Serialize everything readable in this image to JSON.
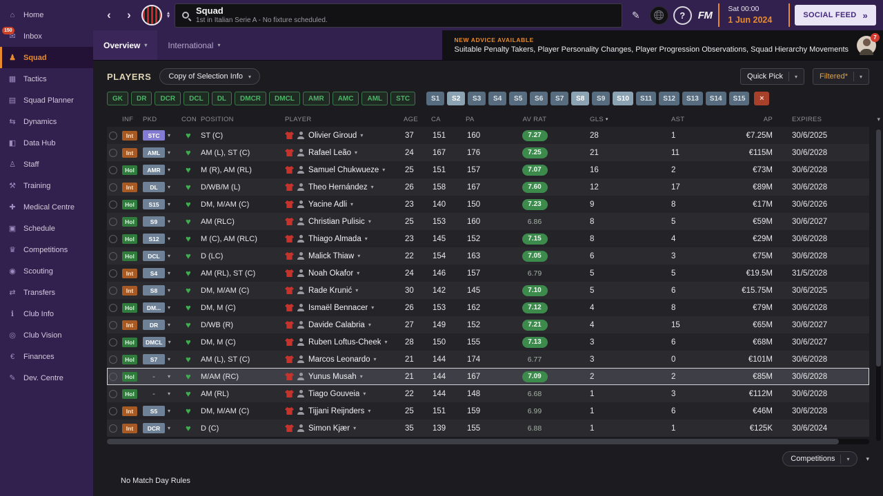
{
  "icons": {
    "chevron_down": "▾",
    "chevron_up": "▴",
    "sort_desc": "▾",
    "double_arrow": "»",
    "back": "‹",
    "forward": "›",
    "pencil": "✎",
    "help": "?",
    "heart": "♥",
    "clear": "×",
    "sidebar": {
      "home": "⌂",
      "inbox": "✉",
      "squad": "♟",
      "tactics": "▦",
      "squad_planner": "▤",
      "dynamics": "⇆",
      "data_hub": "◧",
      "staff": "♙",
      "training": "⚒",
      "medical": "✚",
      "schedule": "▣",
      "competitions": "♛",
      "scouting": "◉",
      "transfers": "⇄",
      "club_info": "ℹ",
      "club_vision": "◎",
      "finances": "€",
      "dev_centre": "✎"
    }
  },
  "topbar": {
    "title": "Squad",
    "subtitle": "1st in Italian Serie A - No fixture scheduled.",
    "date_time": "Sat 00:00",
    "date": "1 Jun 2024",
    "fm_label": "FM",
    "social_feed_label": "SOCIAL FEED"
  },
  "tab_bar": {
    "tabs": [
      {
        "label": "Overview",
        "active": true
      },
      {
        "label": "International",
        "active": false
      }
    ],
    "advice_title": "NEW ADVICE AVAILABLE",
    "advice_text": "Suitable Penalty Takers, Player Personality Changes, Player Progression Observations, Squad Hierarchy Movements",
    "advice_badge": "7"
  },
  "sidebar": {
    "items": [
      {
        "label": "Home",
        "icon": "home"
      },
      {
        "label": "Inbox",
        "icon": "inbox",
        "badge": "150"
      },
      {
        "label": "Squad",
        "icon": "squad",
        "active": true
      },
      {
        "label": "Tactics",
        "icon": "tactics"
      },
      {
        "label": "Squad Planner",
        "icon": "squad_planner"
      },
      {
        "label": "Dynamics",
        "icon": "dynamics"
      },
      {
        "label": "Data Hub",
        "icon": "data_hub"
      },
      {
        "label": "Staff",
        "icon": "staff"
      },
      {
        "label": "Training",
        "icon": "training"
      },
      {
        "label": "Medical Centre",
        "icon": "medical"
      },
      {
        "label": "Schedule",
        "icon": "schedule"
      },
      {
        "label": "Competitions",
        "icon": "competitions"
      },
      {
        "label": "Scouting",
        "icon": "scouting"
      },
      {
        "label": "Transfers",
        "icon": "transfers"
      },
      {
        "label": "Club Info",
        "icon": "club_info"
      },
      {
        "label": "Club Vision",
        "icon": "club_vision"
      },
      {
        "label": "Finances",
        "icon": "finances"
      },
      {
        "label": "Dev. Centre",
        "icon": "dev_centre"
      }
    ]
  },
  "players_panel": {
    "title": "PLAYERS",
    "selection_dropdown": "Copy of Selection Info",
    "quick_pick_label": "Quick Pick",
    "filtered_label": "Filtered*"
  },
  "position_filters": [
    "GK",
    "DR",
    "DCR",
    "DCL",
    "DL",
    "DMCR",
    "DMCL",
    "AMR",
    "AMC",
    "AML",
    "STC"
  ],
  "sub_filters": [
    {
      "label": "S1",
      "state": "normal"
    },
    {
      "label": "S2",
      "state": "bright"
    },
    {
      "label": "S3",
      "state": "normal"
    },
    {
      "label": "S4",
      "state": "normal"
    },
    {
      "label": "S5",
      "state": "normal"
    },
    {
      "label": "S6",
      "state": "normal"
    },
    {
      "label": "S7",
      "state": "normal"
    },
    {
      "label": "S8",
      "state": "bright"
    },
    {
      "label": "S9",
      "state": "normal"
    },
    {
      "label": "S10",
      "state": "bright"
    },
    {
      "label": "S11",
      "state": "normal"
    },
    {
      "label": "S12",
      "state": "normal"
    },
    {
      "label": "S13",
      "state": "normal"
    },
    {
      "label": "S14",
      "state": "normal"
    },
    {
      "label": "S15",
      "state": "normal"
    }
  ],
  "squad_table": {
    "columns": [
      {
        "label": ""
      },
      {
        "label": "INF"
      },
      {
        "label": "PKD"
      },
      {
        "label": "CON"
      },
      {
        "label": "POSITION"
      },
      {
        "label": "PLAYER"
      },
      {
        "label": "AGE"
      },
      {
        "label": "CA"
      },
      {
        "label": "PA"
      },
      {
        "label": "AV RAT"
      },
      {
        "label": "GLS",
        "sorted": "desc"
      },
      {
        "label": "AST"
      },
      {
        "label": "AP"
      },
      {
        "label": "EXPIRES"
      }
    ],
    "rows": [
      {
        "inf": "Int",
        "pkd": "STC",
        "pkd_color": "#837cd2",
        "pos": "ST (C)",
        "player": "Olivier Giroud",
        "age": "37",
        "ca": "151",
        "pa": "160",
        "rat": "7.27",
        "gls": "28",
        "ast": "1",
        "ap": "€7.25M",
        "exp": "30/6/2025"
      },
      {
        "inf": "Int",
        "pkd": "AML",
        "pos": "AM (L), ST (C)",
        "player": "Rafael Leão",
        "age": "24",
        "ca": "167",
        "pa": "176",
        "rat": "7.25",
        "gls": "21",
        "ast": "11",
        "ap": "€115M",
        "exp": "30/6/2028"
      },
      {
        "inf": "Hol",
        "pkd": "AMR",
        "pos": "M (R), AM (RL)",
        "player": "Samuel Chukwueze",
        "age": "25",
        "ca": "151",
        "pa": "157",
        "rat": "7.07",
        "gls": "16",
        "ast": "2",
        "ap": "€73M",
        "exp": "30/6/2028"
      },
      {
        "inf": "Int",
        "pkd": "DL",
        "pos": "D/WB/M (L)",
        "player": "Theo Hernández",
        "age": "26",
        "ca": "158",
        "pa": "167",
        "rat": "7.60",
        "gls": "12",
        "ast": "17",
        "ap": "€89M",
        "exp": "30/6/2028"
      },
      {
        "inf": "Hol",
        "pkd": "S15",
        "pos": "DM, M/AM (C)",
        "player": "Yacine Adli",
        "age": "23",
        "ca": "140",
        "pa": "150",
        "rat": "7.23",
        "gls": "9",
        "ast": "8",
        "ap": "€17M",
        "exp": "30/6/2026"
      },
      {
        "inf": "Hol",
        "pkd": "S9",
        "pos": "AM (RLC)",
        "player": "Christian Pulisic",
        "age": "25",
        "ca": "153",
        "pa": "160",
        "rat": "6.86",
        "gls": "8",
        "ast": "5",
        "ap": "€59M",
        "exp": "30/6/2027"
      },
      {
        "inf": "Hol",
        "pkd": "S12",
        "pos": "M (C), AM (RLC)",
        "player": "Thiago Almada",
        "age": "23",
        "ca": "145",
        "pa": "152",
        "rat": "7.15",
        "gls": "8",
        "ast": "4",
        "ap": "€29M",
        "exp": "30/6/2028"
      },
      {
        "inf": "Hol",
        "pkd": "DCL",
        "pos": "D (LC)",
        "player": "Malick Thiaw",
        "age": "22",
        "ca": "154",
        "pa": "163",
        "rat": "7.05",
        "gls": "6",
        "ast": "3",
        "ap": "€75M",
        "exp": "30/6/2028"
      },
      {
        "inf": "Int",
        "pkd": "S4",
        "pos": "AM (RL), ST (C)",
        "player": "Noah Okafor",
        "age": "24",
        "ca": "146",
        "pa": "157",
        "rat": "6.79",
        "gls": "5",
        "ast": "5",
        "ap": "€19.5M",
        "exp": "31/5/2028"
      },
      {
        "inf": "Int",
        "pkd": "S8",
        "pos": "DM, M/AM (C)",
        "player": "Rade Krunić",
        "age": "30",
        "ca": "142",
        "pa": "145",
        "rat": "7.10",
        "gls": "5",
        "ast": "6",
        "ap": "€15.75M",
        "exp": "30/6/2025"
      },
      {
        "inf": "Hol",
        "pkd": "DM...",
        "pos": "DM, M (C)",
        "player": "Ismaël Bennacer",
        "age": "26",
        "ca": "153",
        "pa": "162",
        "rat": "7.12",
        "gls": "4",
        "ast": "8",
        "ap": "€79M",
        "exp": "30/6/2028"
      },
      {
        "inf": "Int",
        "pkd": "DR",
        "pos": "D/WB (R)",
        "player": "Davide Calabria",
        "age": "27",
        "ca": "149",
        "pa": "152",
        "rat": "7.21",
        "gls": "4",
        "ast": "15",
        "ap": "€65M",
        "exp": "30/6/2027"
      },
      {
        "inf": "Hol",
        "pkd": "DMCL",
        "pos": "DM, M (C)",
        "player": "Ruben Loftus-Cheek",
        "age": "28",
        "ca": "150",
        "pa": "155",
        "rat": "7.13",
        "gls": "3",
        "ast": "6",
        "ap": "€68M",
        "exp": "30/6/2027"
      },
      {
        "inf": "Hol",
        "pkd": "S7",
        "pos": "AM (L), ST (C)",
        "player": "Marcos Leonardo",
        "age": "21",
        "ca": "144",
        "pa": "174",
        "rat": "6.77",
        "gls": "3",
        "ast": "0",
        "ap": "€101M",
        "exp": "30/6/2028"
      },
      {
        "inf": "Hol",
        "pkd": "-",
        "pos": "M/AM (RC)",
        "player": "Yunus Musah",
        "age": "21",
        "ca": "144",
        "pa": "167",
        "rat": "7.09",
        "gls": "2",
        "ast": "2",
        "ap": "€85M",
        "exp": "30/6/2028",
        "selected": true
      },
      {
        "inf": "Hol",
        "pkd": "-",
        "pos": "AM (RL)",
        "player": "Tiago Gouveia",
        "age": "22",
        "ca": "144",
        "pa": "148",
        "rat": "6.68",
        "gls": "1",
        "ast": "3",
        "ap": "€112M",
        "exp": "30/6/2028"
      },
      {
        "inf": "Int",
        "pkd": "S5",
        "pos": "DM, M/AM (C)",
        "player": "Tijjani Reijnders",
        "age": "25",
        "ca": "151",
        "pa": "159",
        "rat": "6.99",
        "gls": "1",
        "ast": "6",
        "ap": "€46M",
        "exp": "30/6/2028"
      },
      {
        "inf": "Int",
        "pkd": "DCR",
        "pos": "D (C)",
        "player": "Simon Kjær",
        "age": "35",
        "ca": "139",
        "pa": "155",
        "rat": "6.88",
        "gls": "1",
        "ast": "1",
        "ap": "€125K",
        "exp": "30/6/2024"
      }
    ]
  },
  "footer": {
    "competitions_label": "Competitions",
    "match_rules_text": "No Match Day Rules"
  }
}
